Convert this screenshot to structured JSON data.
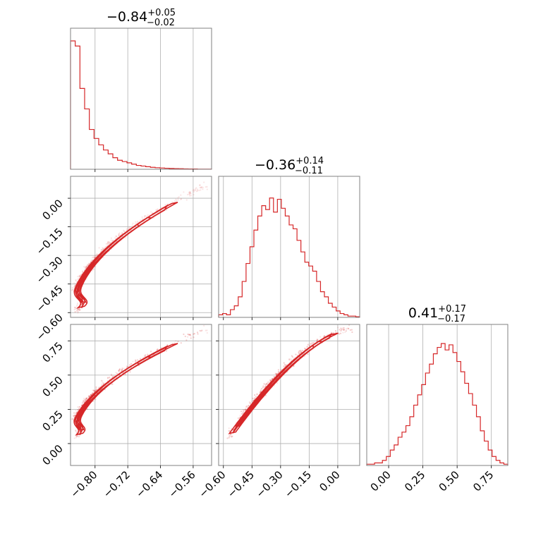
{
  "chart_data": {
    "type": "corner",
    "color": "#d62728",
    "params": [
      {
        "median": "−0.84",
        "plus": "+0.05",
        "minus": "−0.02",
        "range": [
          -0.86,
          -0.515
        ],
        "ticks": [
          -0.8,
          -0.72,
          -0.64,
          -0.56
        ],
        "tick_labels": [
          "−0.80",
          "−0.72",
          "−0.64",
          "−0.56"
        ],
        "hist": [
          1.0,
          0.96,
          0.63,
          0.47,
          0.31,
          0.24,
          0.19,
          0.15,
          0.12,
          0.09,
          0.07,
          0.06,
          0.05,
          0.04,
          0.03,
          0.025,
          0.02,
          0.015,
          0.012,
          0.01,
          0.008,
          0.006,
          0.005,
          0.004,
          0.003,
          0.002,
          0.002,
          0.001,
          0.001,
          0.001
        ]
      },
      {
        "median": "−0.36",
        "plus": "+0.14",
        "minus": "−0.11",
        "range": [
          -0.625,
          0.115
        ],
        "ticks": [
          -0.6,
          -0.45,
          -0.3,
          -0.15,
          0.0
        ],
        "tick_labels": [
          "−0.60",
          "−0.45",
          "−0.30",
          "−0.15",
          "0.00"
        ],
        "hist": [
          0.02,
          0.03,
          0.02,
          0.06,
          0.09,
          0.16,
          0.28,
          0.42,
          0.55,
          0.68,
          0.79,
          0.87,
          0.84,
          0.93,
          0.82,
          0.92,
          0.85,
          0.79,
          0.72,
          0.69,
          0.6,
          0.51,
          0.43,
          0.4,
          0.36,
          0.28,
          0.2,
          0.16,
          0.11,
          0.08,
          0.05,
          0.03,
          0.02,
          0.01,
          0.01,
          0.005
        ]
      },
      {
        "median": "0.41",
        "plus": "+0.17",
        "minus": "−0.17",
        "range": [
          -0.16,
          0.87
        ],
        "ticks": [
          0.0,
          0.25,
          0.5,
          0.75
        ],
        "tick_labels": [
          "0.00",
          "0.25",
          "0.50",
          "0.75"
        ],
        "hist": [
          0.01,
          0.01,
          0.02,
          0.02,
          0.04,
          0.07,
          0.12,
          0.16,
          0.22,
          0.26,
          0.31,
          0.38,
          0.47,
          0.55,
          0.63,
          0.72,
          0.79,
          0.87,
          0.92,
          0.95,
          0.9,
          0.94,
          0.88,
          0.81,
          0.73,
          0.64,
          0.56,
          0.47,
          0.38,
          0.27,
          0.19,
          0.12,
          0.07,
          0.04,
          0.02,
          0.01
        ]
      }
    ],
    "pairs": [
      {
        "x": 0,
        "y": 1,
        "ylim": [
          -0.625,
          0.115
        ]
      },
      {
        "x": 0,
        "y": 2,
        "ylim": [
          -0.16,
          0.87
        ]
      },
      {
        "x": 1,
        "y": 2,
        "ylim": [
          -0.16,
          0.87
        ]
      }
    ],
    "grid": true
  }
}
